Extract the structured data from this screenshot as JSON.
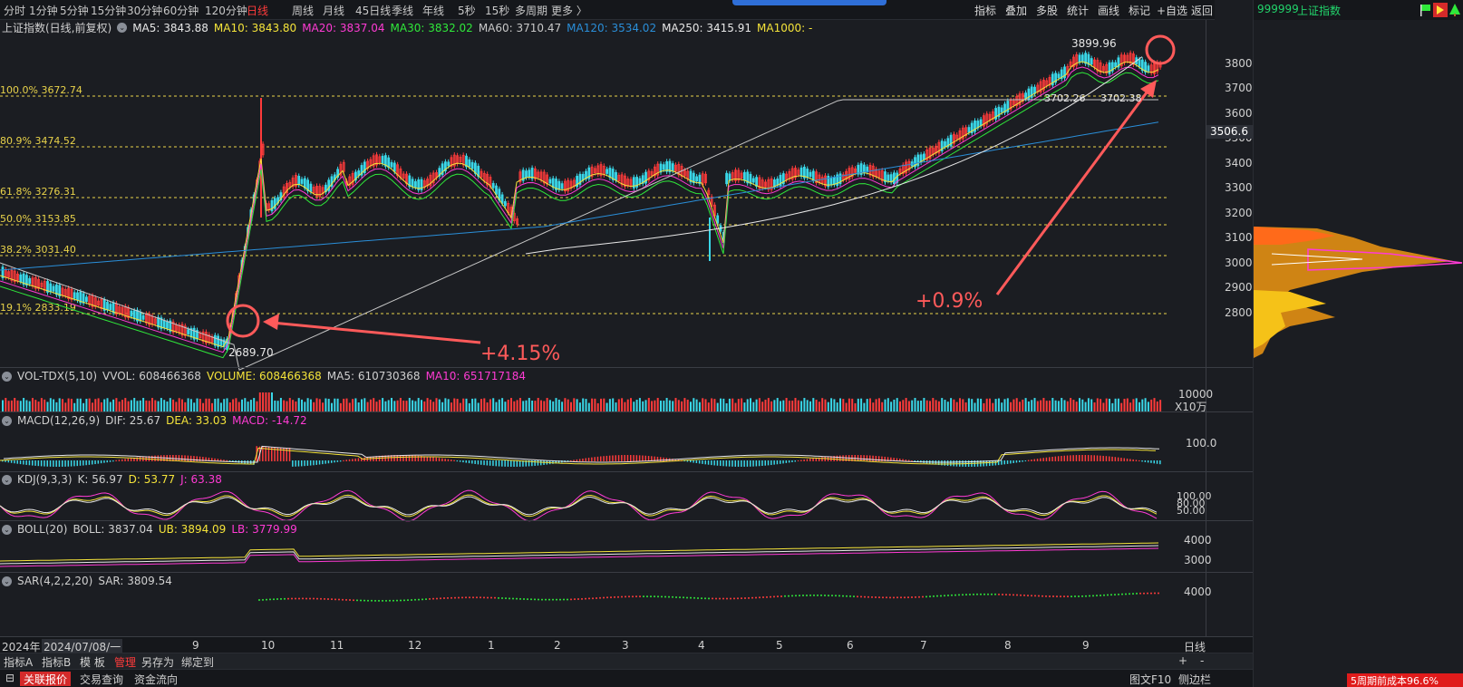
{
  "toolbar": {
    "periods": [
      "分时",
      "1分钟",
      "5分钟",
      "15分钟",
      "30分钟",
      "60分钟",
      "120分钟",
      "日线",
      "周线",
      "月线",
      "45日线",
      "季线",
      "年线",
      "5秒",
      "15秒",
      "多周期",
      "更多 〉"
    ],
    "active_period": "日线",
    "right_tools": [
      "指标",
      "叠加",
      "多股",
      "统计",
      "画线",
      "标记",
      "+自选",
      "返回"
    ]
  },
  "stock": {
    "code": "999999",
    "name": "上证指数"
  },
  "ma_legend": {
    "title": "上证指数(日线,前复权)",
    "items": [
      {
        "label": "MA5: 3843.88",
        "color": "#e8e8e8"
      },
      {
        "label": "MA10: 3843.80",
        "color": "#f5e43a"
      },
      {
        "label": "MA20: 3837.04",
        "color": "#ff3bd4"
      },
      {
        "label": "MA30: 3832.02",
        "color": "#2fe83a"
      },
      {
        "label": "MA60: 3710.47",
        "color": "#c8c8c8"
      },
      {
        "label": "MA120: 3534.02",
        "color": "#2a8ed8"
      },
      {
        "label": "MA250: 3415.91",
        "color": "#e8e8e8"
      },
      {
        "label": "MA1000: -",
        "color": "#f5e43a"
      }
    ]
  },
  "fib_levels": [
    "100.0% 3672.74",
    "80.9% 3474.52",
    "61.8% 3276.31",
    "50.0% 3153.85",
    "38.2% 3031.40",
    "19.1% 2833.19"
  ],
  "price_axis": [
    "3800",
    "3700",
    "3600",
    "3500",
    "3400",
    "3300",
    "3200",
    "3100",
    "3000",
    "2900",
    "2800"
  ],
  "current_price_tag": "3506.6",
  "price_labels": {
    "high": "3899.96",
    "low": "2689.70",
    "mid1": "3702.26",
    "mid2": "3702.38"
  },
  "annotations": {
    "left": "+4.15%",
    "right": "+0.9%"
  },
  "volume": {
    "legend": [
      "VOL-TDX(5,10)",
      "VVOL: 608466368",
      "VOLUME: 608466368",
      "MA5: 610730368",
      "MA10: 651717184"
    ],
    "axis": [
      "10000",
      "X10万"
    ]
  },
  "macd": {
    "legend": [
      "MACD(12,26,9)",
      "DIF: 25.67",
      "DEA: 33.03",
      "MACD: -14.72"
    ],
    "axis": [
      "100.0"
    ]
  },
  "kdj": {
    "legend": [
      "KDJ(9,3,3)",
      "K: 56.97",
      "D: 53.77",
      "J: 63.38"
    ],
    "axis": [
      "100.00",
      "80.00",
      "50.00"
    ]
  },
  "boll": {
    "legend": [
      "BOLL(20)",
      "BOLL: 3837.04",
      "UB: 3894.09",
      "LB: 3779.99"
    ],
    "axis": [
      "4000",
      "3000"
    ]
  },
  "sar": {
    "legend": [
      "SAR(4,2,2,20)",
      "SAR: 3809.54"
    ],
    "axis": [
      "4000"
    ]
  },
  "date_axis": {
    "year": "2024年",
    "cursor": "2024/07/08/一",
    "months": [
      "9",
      "10",
      "11",
      "12",
      "1",
      "2",
      "3",
      "4",
      "5",
      "6",
      "7",
      "8",
      "9"
    ],
    "period": "日线"
  },
  "indicator_tabs": [
    "指标A",
    "指标B",
    "模 板",
    "管理",
    "另存为",
    "绑定到"
  ],
  "indicator_tabs_right": [
    "+",
    "-"
  ],
  "status_tabs": [
    "关联报价",
    "交易查询",
    "资金流向"
  ],
  "status_right": [
    "图文F10",
    "侧边栏"
  ],
  "cost_text": "5周期前成本96.6%"
}
